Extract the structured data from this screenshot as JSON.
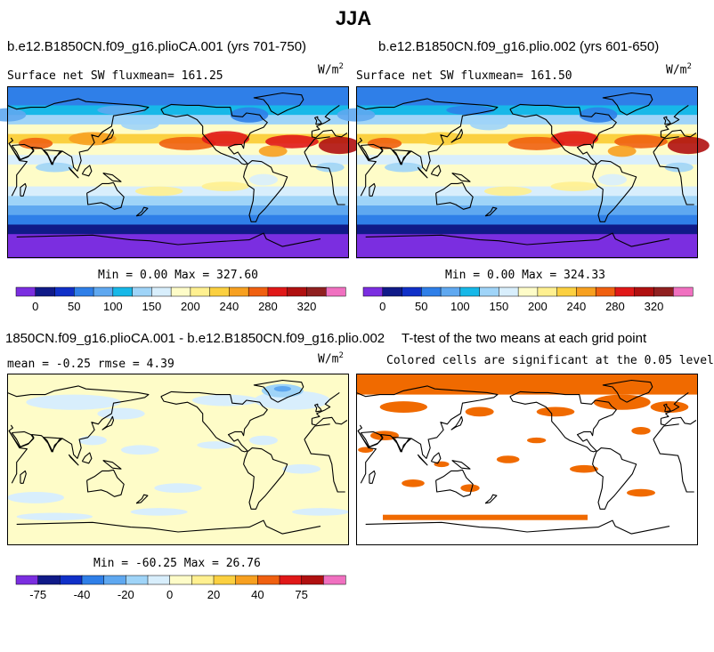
{
  "page_title": "JJA",
  "palette_abs": [
    "#7b2ee0",
    "#101a88",
    "#1030c8",
    "#2f7fe8",
    "#5fa8f0",
    "#17b8e8",
    "#9fd4f8",
    "#d8eefc",
    "#fefcc8",
    "#fff090",
    "#fbd040",
    "#f7a020",
    "#f06010",
    "#e01818",
    "#b01010",
    "#902020",
    "#f070c0"
  ],
  "coast_color": "#000000",
  "panels": [
    {
      "title": "b.e12.B1850CN.f09_g16.plioCA.001 (yrs 701-750)",
      "left_label": "Surface net SW fluxmean= 161.25",
      "units": "W/m",
      "units_exp": "2",
      "minmax": "Min =   0.00 Max = 327.60"
    },
    {
      "title": "b.e12.B1850CN.f09_g16.plio.002 (yrs 601-650)",
      "left_label": "Surface net SW fluxmean= 161.50",
      "units": "W/m",
      "units_exp": "2",
      "minmax": "Min =   0.00 Max = 324.33"
    },
    {
      "title": "1850CN.f09_g16.plioCA.001 - b.e12.B1850CN.f09_g16.plio.002",
      "left_label": "mean =  -0.25    rmse =   4.39",
      "units": "W/m",
      "units_exp": "2",
      "minmax": "Min = -60.25 Max = 26.76"
    },
    {
      "title": "T-test of the two means at each grid point",
      "subtitle": "Colored cells are significant at the 0.05 level",
      "sig_color": "#f06a00"
    }
  ],
  "chart_data": [
    {
      "type": "heatmap",
      "title": "b.e12.B1850CN.f09_g16.plioCA.001 (yrs 701-750)",
      "variable": "Surface net SW flux",
      "units": "W/m2",
      "mean": 161.25,
      "min": 0.0,
      "max": 327.6,
      "colorbar_ticks": [
        "0",
        "50",
        "100",
        "150",
        "200",
        "240",
        "280",
        "320"
      ]
    },
    {
      "type": "heatmap",
      "title": "b.e12.B1850CN.f09_g16.plio.002 (yrs 601-650)",
      "variable": "Surface net SW flux",
      "units": "W/m2",
      "mean": 161.5,
      "min": 0.0,
      "max": 324.33,
      "colorbar_ticks": [
        "0",
        "50",
        "100",
        "150",
        "200",
        "240",
        "280",
        "320"
      ]
    },
    {
      "type": "heatmap",
      "title": "1850CN.f09_g16.plioCA.001 - b.e12.B1850CN.f09_g16.plio.002",
      "units": "W/m2",
      "mean": -0.25,
      "rmse": 4.39,
      "min": -60.25,
      "max": 26.76,
      "colorbar_ticks": [
        "-75",
        "-40",
        "-20",
        "0",
        "20",
        "40",
        "75"
      ],
      "palette": [
        "#7b2ee0",
        "#101a88",
        "#1030c8",
        "#2f7fe8",
        "#5fa8f0",
        "#9fd4f8",
        "#d8eefc",
        "#fefcc8",
        "#fff090",
        "#fbd040",
        "#f7a020",
        "#f06010",
        "#e01818",
        "#b01010",
        "#f070c0"
      ]
    },
    {
      "type": "heatmap",
      "title": "T-test of the two means at each grid point",
      "annotation": "Colored cells are significant at the 0.05 level",
      "significance_level": 0.05
    }
  ]
}
